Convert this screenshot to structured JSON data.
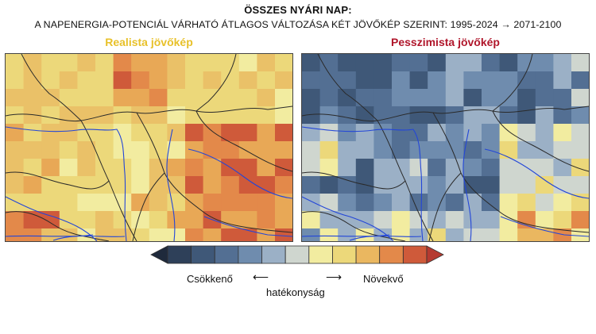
{
  "header": {
    "title": "ÖSSZES NYÁRI NAP:",
    "subtitle": "A NAPENERGIA-POTENCIÁL VÁRHATÓ ÁTLAGOS VÁLTOZÁSA KÉT JÖVŐKÉP SZERINT: 1995-2024 → 2071-2100"
  },
  "panels": [
    {
      "title": "Realista jövőkép",
      "title_color": "#e8c12a",
      "scheme": "warm"
    },
    {
      "title": "Pesszimista jövőkép",
      "title_color": "#b0162b",
      "scheme": "cool"
    }
  ],
  "legend": {
    "left_label": "Csökkenő",
    "right_label": "Növekvő",
    "center_label": "hatékonyság",
    "left_arrow": "⟵",
    "right_arrow": "⟶",
    "colors": [
      "#1f2a3c",
      "#2e4059",
      "#3f5878",
      "#536f93",
      "#6f8cae",
      "#9bb0c6",
      "#cfd6cf",
      "#f2eca0",
      "#ecd87a",
      "#eab760",
      "#e3894a",
      "#cf5a3a",
      "#b53a30"
    ]
  },
  "map_colors": {
    "river": "#2346d8",
    "border": "#2a2a2a"
  }
}
